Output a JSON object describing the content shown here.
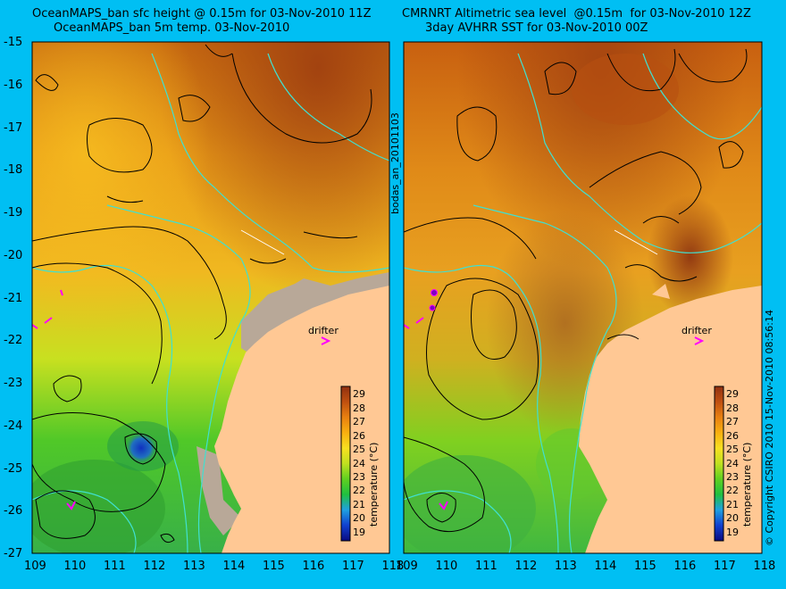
{
  "titles": {
    "left_line1": "OceanMAPS_ban sfc height @ 0.15m for 03-Nov-2010 11Z",
    "left_line2": "OceanMAPS_ban 5m temp. 03-Nov-2010",
    "right_line1": "CMRNRT Altimetric sea level  @0.15m  for 03-Nov-2010 12Z",
    "right_line2": "3day AVHRR SST for 03-Nov-2010 00Z"
  },
  "axes": {
    "y_ticks": [
      "-15",
      "-16",
      "-17",
      "-18",
      "-19",
      "-20",
      "-21",
      "-22",
      "-23",
      "-24",
      "-25",
      "-26",
      "-27"
    ],
    "x_ticks": [
      "109",
      "110",
      "111",
      "112",
      "113",
      "114",
      "115",
      "116",
      "117",
      "118"
    ]
  },
  "labels": {
    "drifter": "drifter",
    "middle_vertical": "bodas_an_20101103",
    "right_vertical": "© Copyright CSIRO 2010   15-Nov-2010 08:56:14",
    "colorbar_title": "temperature (°C)"
  },
  "colorbar": {
    "ticks": [
      "19",
      "20",
      "21",
      "22",
      "23",
      "24",
      "25",
      "26",
      "27",
      "28",
      "29"
    ]
  },
  "colors": {
    "background": "#00bff3",
    "land": "#ffc894",
    "coastline": "#40e0d0",
    "contour": "#000000",
    "drifter_marker": "#ff00ff"
  }
}
